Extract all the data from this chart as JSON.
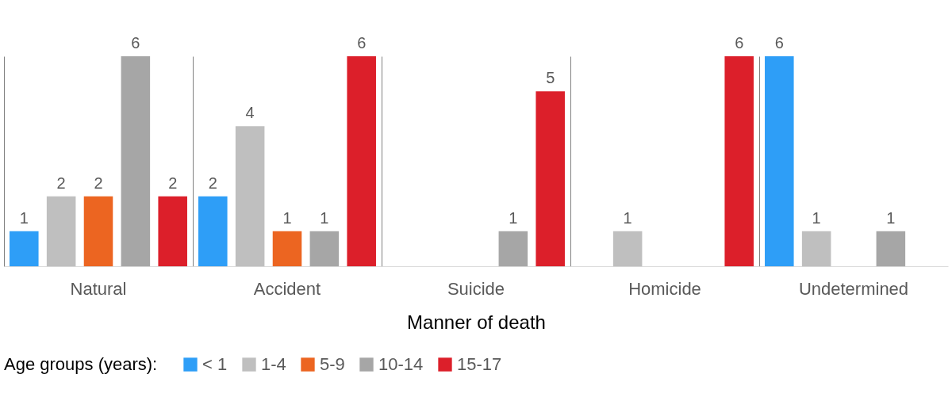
{
  "chart_data": {
    "type": "bar",
    "xlabel": "Manner of death",
    "legend_title": "Age groups (years):",
    "categories": [
      "Natural",
      "Accident",
      "Suicide",
      "Homicide",
      "Undetermined"
    ],
    "series": [
      {
        "name": "< 1",
        "color": "#2e9ef7",
        "values": [
          1,
          2,
          null,
          null,
          6
        ]
      },
      {
        "name": "1-4",
        "color": "#bfbfbf",
        "values": [
          2,
          4,
          null,
          1,
          1
        ]
      },
      {
        "name": "5-9",
        "color": "#ec6521",
        "values": [
          2,
          1,
          null,
          null,
          null
        ]
      },
      {
        "name": "10-14",
        "color": "#a6a6a6",
        "values": [
          6,
          1,
          1,
          null,
          1
        ]
      },
      {
        "name": "15-17",
        "color": "#dc1f2a",
        "values": [
          2,
          6,
          5,
          6,
          null
        ]
      }
    ],
    "data_labels": true,
    "grid": "x",
    "legend": "bottom"
  }
}
